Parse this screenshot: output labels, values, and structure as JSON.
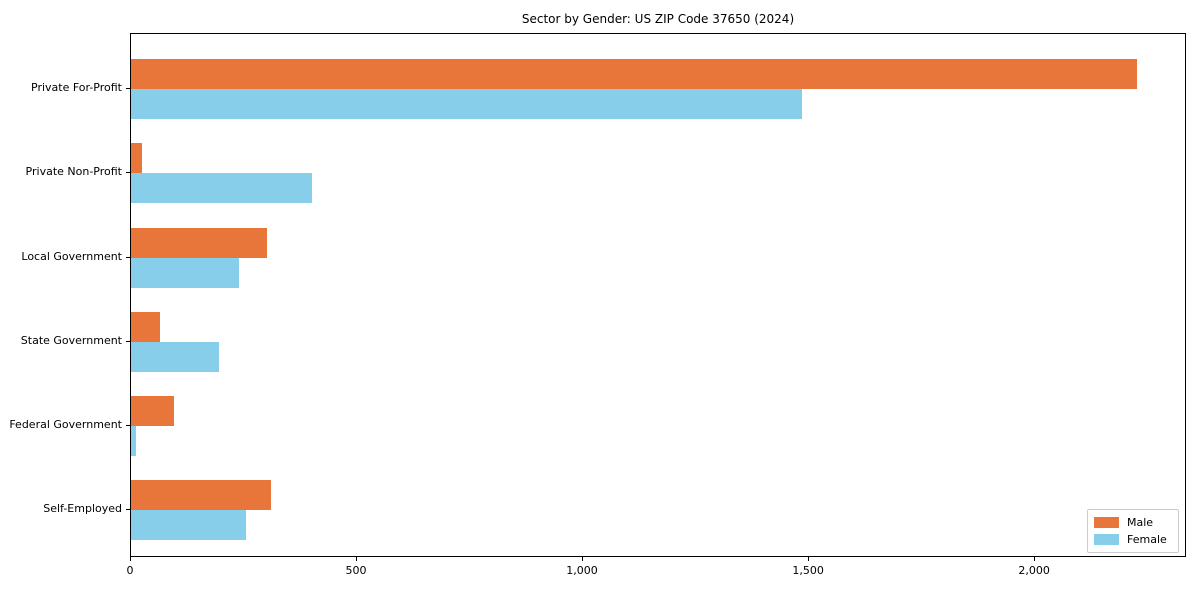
{
  "title": "Sector by Gender: US ZIP Code 37650 (2024)",
  "chart_data": {
    "type": "bar",
    "orientation": "horizontal",
    "title": "Sector by Gender: US ZIP Code 37650 (2024)",
    "categories": [
      "Private For-Profit",
      "Private Non-Profit",
      "Local Government",
      "State Government",
      "Federal Government",
      "Self-Employed"
    ],
    "series": [
      {
        "name": "Male",
        "color": "#e8763b",
        "values": [
          2225,
          25,
          300,
          65,
          95,
          310
        ]
      },
      {
        "name": "Female",
        "color": "#87ceeb",
        "values": [
          1485,
          400,
          240,
          195,
          10,
          255
        ]
      }
    ],
    "xlim": [
      0,
      2336
    ],
    "xticks": [
      {
        "value": 0,
        "label": "0"
      },
      {
        "value": 500,
        "label": "500"
      },
      {
        "value": 1000,
        "label": "1,000"
      },
      {
        "value": 1500,
        "label": "1,500"
      },
      {
        "value": 2000,
        "label": "2,000"
      }
    ],
    "xlabel": "",
    "ylabel": "",
    "grid": false,
    "legend": {
      "position": "lower right",
      "entries": [
        "Male",
        "Female"
      ]
    },
    "colors": {
      "male": "#e8763b",
      "female": "#87ceeb",
      "axis": "#000000",
      "background": "#ffffff",
      "legend_border": "#cccccc"
    }
  }
}
